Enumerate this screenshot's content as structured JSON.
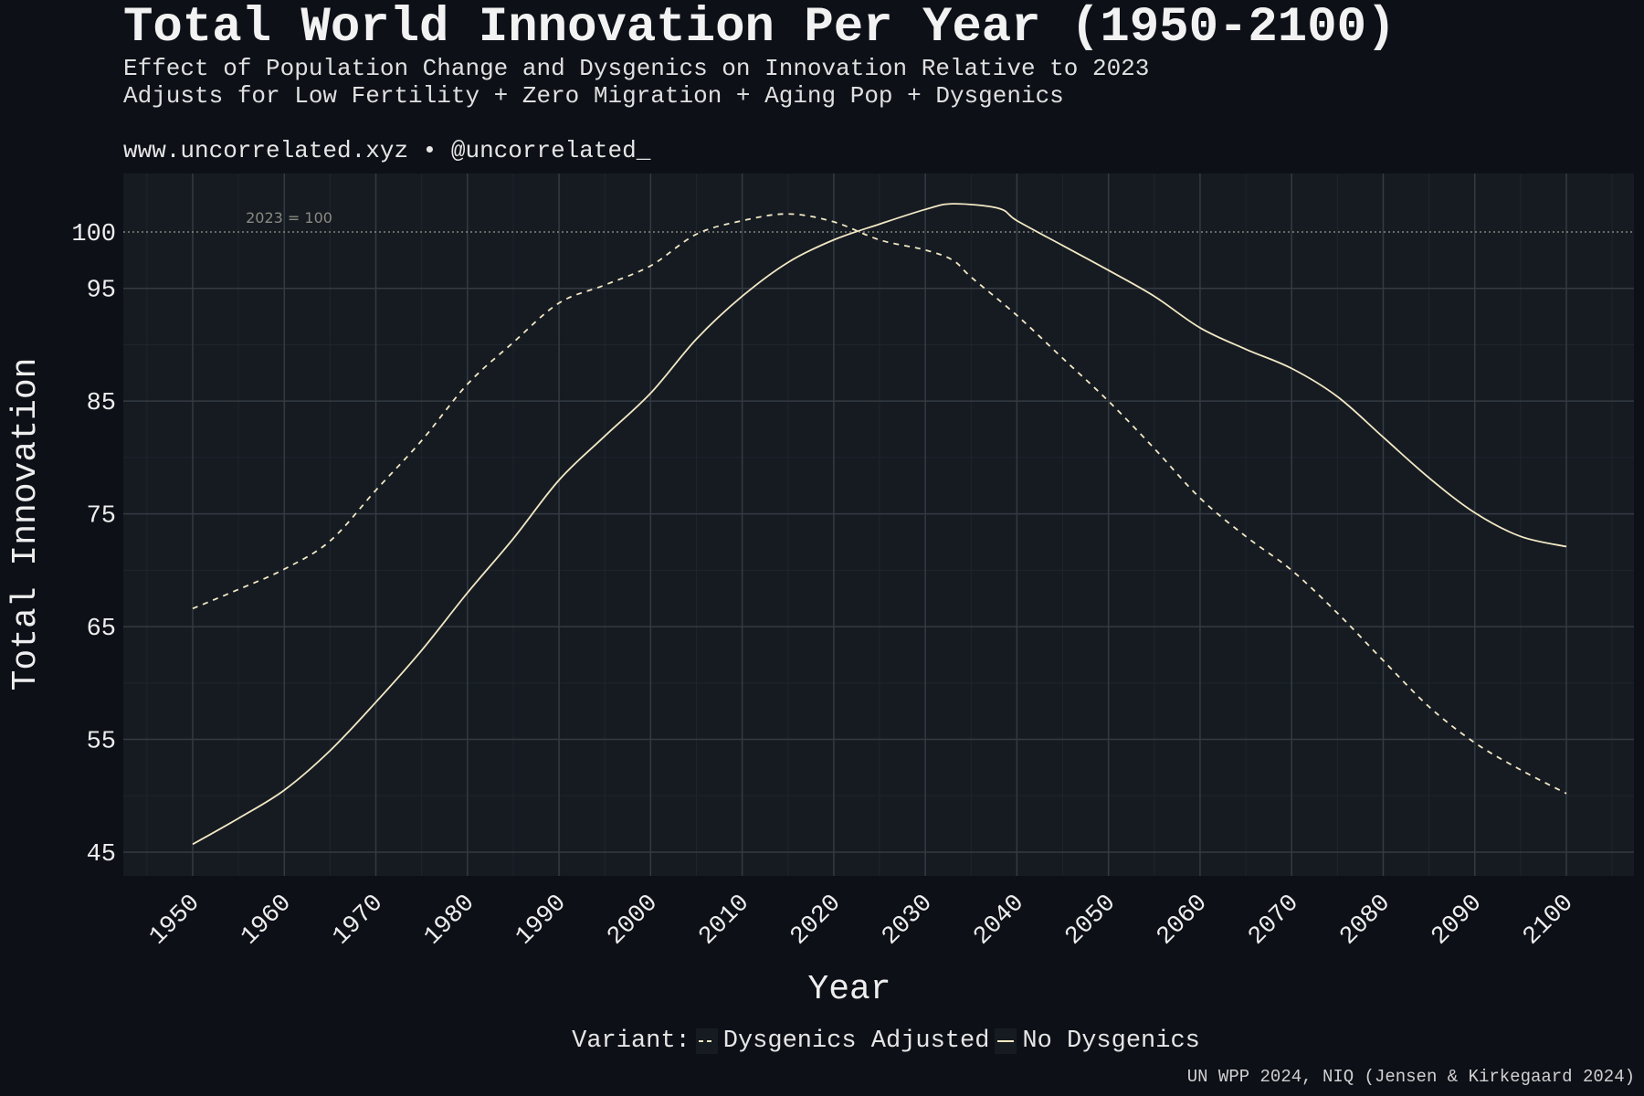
{
  "header": {
    "title": "Total World Innovation Per Year (1950-2100)",
    "subtitle_line1": "Effect of Population Change and Dysgenics on Innovation Relative to 2023",
    "subtitle_line2": "Adjusts for Low Fertility + Zero Migration + Aging Pop + Dysgenics",
    "website": "www.uncorrelated.xyz • @uncorrelated_"
  },
  "caption": "UN WPP 2024, NIQ (Jensen & Kirkegaard 2024)",
  "legend": {
    "title": "Variant:",
    "items": [
      "Dysgenics Adjusted",
      "No Dysgenics"
    ]
  },
  "colors": {
    "background": "#0d1017",
    "panel": "#161b22",
    "line": "#f2e8c4",
    "grid": "#343a43"
  },
  "chart_data": {
    "type": "line",
    "xlabel": "Year",
    "ylabel": "Total Innovation",
    "xlim": [
      1942,
      2115
    ],
    "ylim": [
      43,
      105.5
    ],
    "x_ticks": [
      1950,
      1960,
      1970,
      1980,
      1990,
      2000,
      2010,
      2020,
      2030,
      2040,
      2050,
      2060,
      2070,
      2080,
      2090,
      2100
    ],
    "y_ticks": [
      45,
      55,
      65,
      75,
      85,
      95,
      100
    ],
    "grid": true,
    "legend_position": "bottom",
    "reference_line": {
      "y": 100,
      "label": "2023 = 100",
      "style": "dotted"
    },
    "series": [
      {
        "name": "Dysgenics Adjusted",
        "style": "dashed",
        "points": [
          [
            1950,
            66.6
          ],
          [
            1955,
            68.3
          ],
          [
            1960,
            70.1
          ],
          [
            1965,
            72.6
          ],
          [
            1970,
            77.1
          ],
          [
            1975,
            81.5
          ],
          [
            1980,
            86.5
          ],
          [
            1985,
            90.2
          ],
          [
            1990,
            93.7
          ],
          [
            1995,
            95.3
          ],
          [
            2000,
            97.0
          ],
          [
            2005,
            99.8
          ],
          [
            2010,
            101.0
          ],
          [
            2015,
            101.6
          ],
          [
            2020,
            100.9
          ],
          [
            2025,
            99.3
          ],
          [
            2030,
            98.4
          ],
          [
            2033,
            97.5
          ],
          [
            2035,
            96.0
          ],
          [
            2040,
            92.6
          ],
          [
            2045,
            88.8
          ],
          [
            2050,
            85.0
          ],
          [
            2055,
            80.8
          ],
          [
            2060,
            76.4
          ],
          [
            2065,
            73.0
          ],
          [
            2070,
            70.0
          ],
          [
            2075,
            66.2
          ],
          [
            2080,
            62.0
          ],
          [
            2085,
            57.9
          ],
          [
            2090,
            54.7
          ],
          [
            2095,
            52.3
          ],
          [
            2100,
            50.2
          ]
        ]
      },
      {
        "name": "No Dysgenics",
        "style": "solid",
        "points": [
          [
            1950,
            45.7
          ],
          [
            1955,
            48.0
          ],
          [
            1960,
            50.5
          ],
          [
            1965,
            54.0
          ],
          [
            1970,
            58.3
          ],
          [
            1975,
            62.9
          ],
          [
            1980,
            68.0
          ],
          [
            1985,
            72.8
          ],
          [
            1990,
            78.0
          ],
          [
            1995,
            81.9
          ],
          [
            2000,
            85.7
          ],
          [
            2005,
            90.5
          ],
          [
            2010,
            94.3
          ],
          [
            2015,
            97.3
          ],
          [
            2020,
            99.3
          ],
          [
            2025,
            100.7
          ],
          [
            2030,
            102.0
          ],
          [
            2033,
            102.5
          ],
          [
            2038,
            102.1
          ],
          [
            2040,
            101.0
          ],
          [
            2045,
            98.8
          ],
          [
            2050,
            96.6
          ],
          [
            2055,
            94.3
          ],
          [
            2060,
            91.5
          ],
          [
            2065,
            89.6
          ],
          [
            2070,
            87.9
          ],
          [
            2075,
            85.4
          ],
          [
            2080,
            81.8
          ],
          [
            2085,
            78.2
          ],
          [
            2090,
            75.1
          ],
          [
            2095,
            73.0
          ],
          [
            2100,
            72.1
          ]
        ]
      }
    ]
  }
}
